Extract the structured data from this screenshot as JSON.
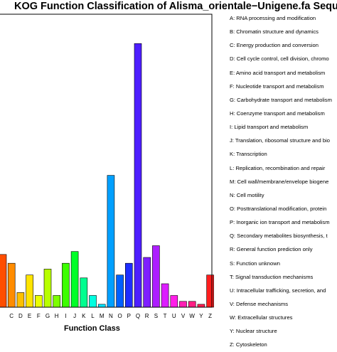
{
  "chart_data": {
    "type": "bar",
    "title": "KOG Function Classification of Alisma_orientale−Unigene.fa Sequ",
    "xlabel": "Function Class",
    "ylabel": "",
    "categories": [
      "C",
      "D",
      "E",
      "F",
      "G",
      "H",
      "I",
      "J",
      "K",
      "L",
      "M",
      "N",
      "O",
      "P",
      "Q",
      "R",
      "S",
      "T",
      "U",
      "V",
      "W",
      "Y",
      "Z"
    ],
    "values": [
      15,
      5,
      11,
      4,
      13,
      4,
      15,
      19,
      10,
      4,
      1,
      45,
      11,
      15,
      90,
      17,
      21,
      8,
      4,
      2,
      2,
      1,
      11
    ],
    "partial_category": "B",
    "partial_value": 18,
    "ylim": [
      0,
      100
    ],
    "grid": false,
    "bar_colors": [
      "#ff8c00",
      "#ffc000",
      "#ffe400",
      "#eaff00",
      "#b8ff00",
      "#7cff00",
      "#3cff00",
      "#00ff28",
      "#00ff90",
      "#00ffe0",
      "#00e4ff",
      "#00a0ff",
      "#0060ff",
      "#1e2dff",
      "#4d1eff",
      "#7e1eff",
      "#ad1eff",
      "#dc1eff",
      "#ff1ee8",
      "#ff1eb4",
      "#ff1e84",
      "#ff1e52",
      "#ff1e1e"
    ],
    "partial_color": "#ff4e00",
    "legend": [
      "A: RNA processing and modification",
      "B: Chromatin structure and dynamics",
      "C: Energy production and conversion",
      "D: Cell cycle control, cell division, chromo",
      "E: Amino acid transport and metabolism",
      "F: Nucleotide transport and metabolism",
      "G: Carbohydrate transport and metabolism",
      "H: Coenzyme transport and metabolism",
      "I: Lipid transport and metabolism",
      "J: Translation, ribosomal structure and bio",
      "K: Transcription",
      "L: Replication, recombination and repair",
      "M: Cell wall/membrane/envelope biogene",
      "N: Cell motility",
      "O: Posttranslational modification, protein",
      "P: Inorganic ion transport and metabolism",
      "Q: Secondary metabolites biosynthesis, t",
      "R: General function prediction only",
      "S: Function unknown",
      "T: Signal transduction mechanisms",
      "U: Intracellular trafficking, secretion, and",
      "V: Defense mechanisms",
      "W: Extracellular structures",
      "Y: Nuclear structure",
      "Z: Cytoskeleton"
    ]
  }
}
